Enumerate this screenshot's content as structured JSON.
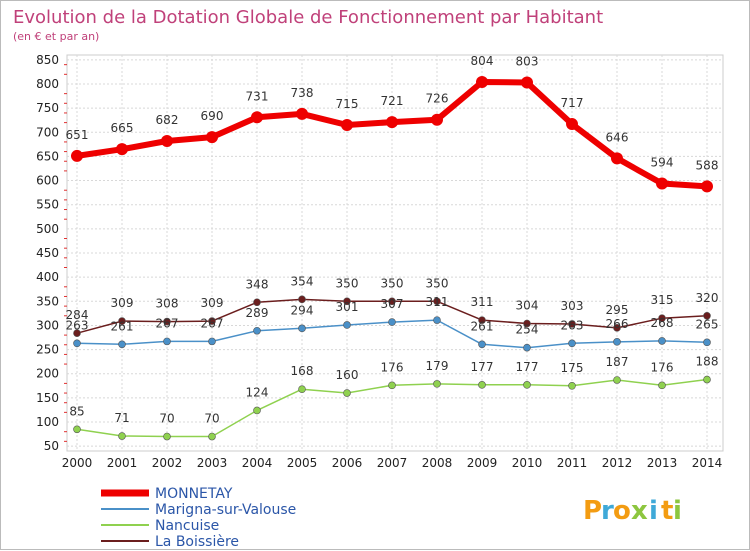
{
  "chart_data": {
    "type": "line",
    "title": "Evolution de la Dotation Globale de Fonctionnement par Habitant",
    "subtitle": "(en € et par an)",
    "xlabel": "",
    "ylabel": "",
    "categories": [
      "2000",
      "2001",
      "2002",
      "2003",
      "2004",
      "2005",
      "2006",
      "2007",
      "2008",
      "2009",
      "2010",
      "2011",
      "2012",
      "2013",
      "2014"
    ],
    "yticks": [
      50,
      100,
      150,
      200,
      250,
      300,
      350,
      400,
      450,
      500,
      550,
      600,
      650,
      700,
      750,
      800,
      850
    ],
    "ylim": [
      40,
      860
    ],
    "grid": true,
    "legend_position": "bottom-left",
    "series": [
      {
        "name": "MONNETAY",
        "color": "#ee0000",
        "values": [
          651,
          665,
          682,
          690,
          731,
          738,
          715,
          721,
          726,
          804,
          803,
          717,
          646,
          594,
          588
        ]
      },
      {
        "name": "Marigna-sur-Valouse",
        "color": "#4a90c8",
        "values": [
          263,
          261,
          267,
          267,
          289,
          294,
          301,
          307,
          311,
          261,
          254,
          263,
          266,
          268,
          265
        ]
      },
      {
        "name": "Nancuise",
        "color": "#8fd14f",
        "values": [
          85,
          71,
          70,
          70,
          124,
          168,
          160,
          176,
          179,
          177,
          177,
          175,
          187,
          176,
          188
        ]
      },
      {
        "name": "La Boissière",
        "color": "#6b1e1e",
        "values": [
          284,
          309,
          308,
          309,
          348,
          354,
          350,
          350,
          350,
          311,
          304,
          303,
          295,
          315,
          320
        ]
      }
    ]
  },
  "logo": {
    "letters": [
      "P",
      "r",
      "o",
      "x",
      "i",
      "t",
      "i"
    ],
    "colors": [
      "#f39c12",
      "#3fa9d8",
      "#f39c12",
      "#8dc63f",
      "#3fa9d8",
      "#f39c12",
      "#8dc63f"
    ]
  }
}
